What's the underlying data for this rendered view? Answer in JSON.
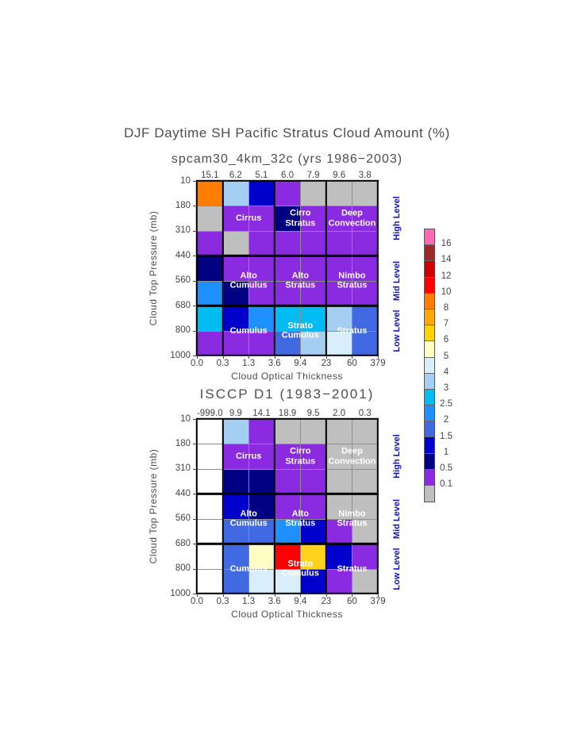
{
  "page": {
    "title": "DJF Daytime SH Pacific Stratus Cloud Amount (%)"
  },
  "palette": {
    "white": "#FFFFFF",
    "gray": "#BFBFBF",
    "purple": "#8A2BE2",
    "navy": "#000082",
    "mblue": "#0000CD",
    "royal": "#4169E1",
    "dodger": "#1E90FF",
    "cyan": "#00BCF2",
    "lblue": "#A4CEF2",
    "pale": "#D8EEFA",
    "cream": "#FFFCC4",
    "gold": "#FFD21E",
    "orange": "#FF7E00",
    "red": "#FF0000"
  },
  "chart_data": [
    {
      "type": "heatmap",
      "title": "spcam30_4km_32c (yrs 1986−2003)",
      "column_values": [
        "15.1",
        "6.2",
        "5.1",
        "6.0",
        "7.9",
        "9.6",
        "3.8"
      ],
      "x_label": "Cloud Optical Thickness",
      "y_label": "Cloud Top Pressure (mb)",
      "x_ticks": [
        "0.0",
        "0.3",
        "1.3",
        "3.6",
        "9.4",
        "23",
        "60",
        "379"
      ],
      "y_ticks": [
        "10",
        "180",
        "310",
        "440",
        "560",
        "680",
        "800",
        "1000"
      ],
      "level_labels": [
        "High Level",
        "Mid Level",
        "Low Level"
      ],
      "region_labels": [
        [
          "Cirrus"
        ],
        [
          "Cirro",
          "Stratus"
        ],
        [
          "Deep",
          "Convection"
        ],
        [
          "Alto",
          "Cumulus"
        ],
        [
          "Alto",
          "Stratus"
        ],
        [
          "Nimbo",
          "Stratus"
        ],
        [
          "Cumulus"
        ],
        [
          "Strato",
          "Cumulus"
        ],
        [
          "Stratus"
        ]
      ],
      "cells": [
        [
          "orange",
          "lblue",
          "mblue",
          "purple",
          "gray",
          "gray",
          "gray"
        ],
        [
          "gray",
          "purple",
          "purple",
          "navy",
          "purple",
          "purple",
          "purple"
        ],
        [
          "purple",
          "gray",
          "purple",
          "purple",
          "purple",
          "purple",
          "purple"
        ],
        [
          "navy",
          "purple",
          "purple",
          "purple",
          "purple",
          "purple",
          "purple"
        ],
        [
          "dodger",
          "navy",
          "purple",
          "purple",
          "purple",
          "purple",
          "purple"
        ],
        [
          "cyan",
          "mblue",
          "dodger",
          "cyan",
          "cyan",
          "lblue",
          "royal"
        ],
        [
          "purple",
          "purple",
          "purple",
          "royal",
          "lblue",
          "pale",
          "royal"
        ]
      ]
    },
    {
      "type": "heatmap",
      "title": "ISCCP D1 (1983−2001)",
      "column_values": [
        "-999.0",
        "9.9",
        "14.1",
        "18.9",
        "9.5",
        "2.0",
        "0.3"
      ],
      "x_label": "Cloud Optical Thickness",
      "y_label": "Cloud Top Pressure (mb)",
      "x_ticks": [
        "0.0",
        "0.3",
        "1.3",
        "3.6",
        "9.4",
        "23",
        "60",
        "379"
      ],
      "y_ticks": [
        "10",
        "180",
        "310",
        "440",
        "560",
        "680",
        "800",
        "1000"
      ],
      "level_labels": [
        "High Level",
        "Mid Level",
        "Low Level"
      ],
      "region_labels": [
        [
          "Cirrus"
        ],
        [
          "Cirro",
          "Stratus"
        ],
        [
          "Deep",
          "Convection"
        ],
        [
          "Alto",
          "Cumulus"
        ],
        [
          "Alto",
          "Stratus"
        ],
        [
          "Nimbo",
          "Stratus"
        ],
        [
          "Cumulus"
        ],
        [
          "Strato",
          "Cumulus"
        ],
        [
          "Stratus"
        ]
      ],
      "cells": [
        [
          "white",
          "lblue",
          "purple",
          "gray",
          "gray",
          "gray",
          "gray"
        ],
        [
          "white",
          "purple",
          "purple",
          "purple",
          "purple",
          "gray",
          "gray"
        ],
        [
          "white",
          "navy",
          "navy",
          "purple",
          "purple",
          "gray",
          "gray"
        ],
        [
          "white",
          "mblue",
          "navy",
          "purple",
          "purple",
          "gray",
          "gray"
        ],
        [
          "white",
          "royal",
          "royal",
          "dodger",
          "mblue",
          "purple",
          "gray"
        ],
        [
          "white",
          "royal",
          "cream",
          "red",
          "gold",
          "mblue",
          "purple"
        ],
        [
          "white",
          "royal",
          "pale",
          "pale",
          "mblue",
          "purple",
          "gray"
        ]
      ]
    }
  ],
  "legend": {
    "entries": [
      {
        "color": "#FF69B4",
        "label": "16"
      },
      {
        "color": "#9E2828",
        "label": "14"
      },
      {
        "color": "#CE0000",
        "label": "12"
      },
      {
        "color": "#FF0000",
        "label": "10"
      },
      {
        "color": "#FF7E00",
        "label": "8"
      },
      {
        "color": "#FFA805",
        "label": "7"
      },
      {
        "color": "#FFD300",
        "label": "6"
      },
      {
        "color": "#FFFCC4",
        "label": "5"
      },
      {
        "color": "#D8EEFA",
        "label": "4"
      },
      {
        "color": "#A4CEF2",
        "label": "3"
      },
      {
        "color": "#00BCF2",
        "label": "2.5"
      },
      {
        "color": "#1E90FF",
        "label": "2"
      },
      {
        "color": "#4169E1",
        "label": "1.5"
      },
      {
        "color": "#0000CD",
        "label": "1"
      },
      {
        "color": "#000082",
        "label": "0.5"
      },
      {
        "color": "#8A2BE2",
        "label": "0.1"
      },
      {
        "color": "#BFBFBF",
        "label": ""
      }
    ]
  }
}
